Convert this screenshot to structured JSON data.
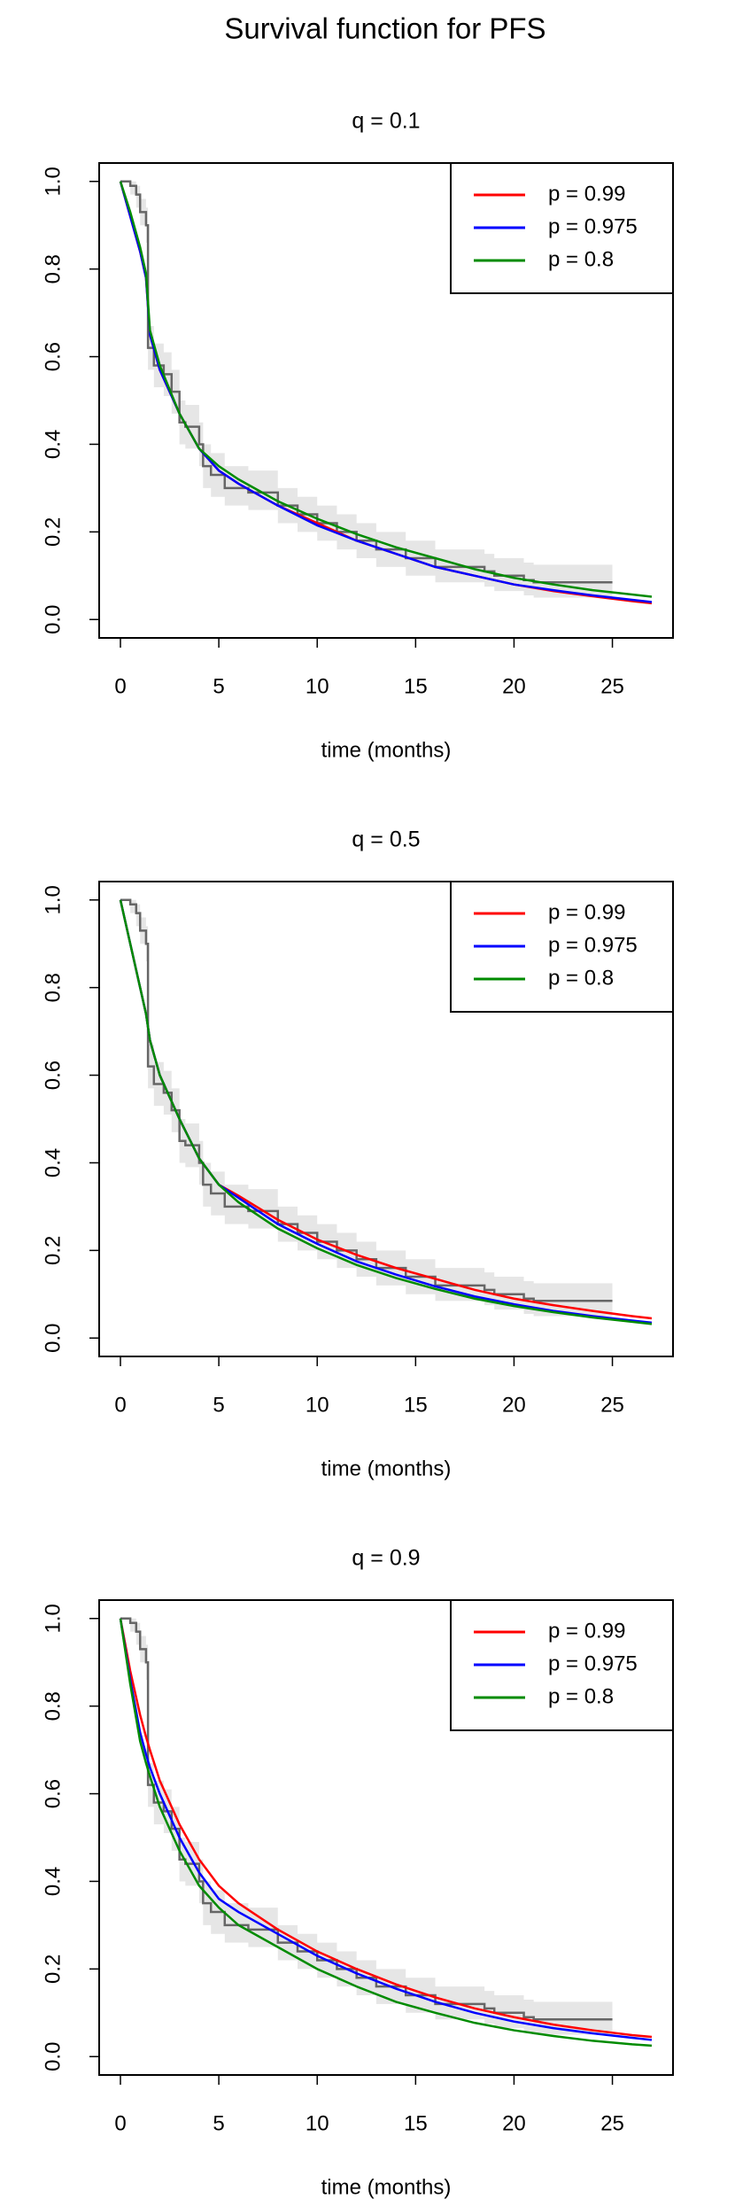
{
  "title": "Survival function for PFS",
  "chart_data": [
    {
      "type": "line",
      "title": "q = 0.1",
      "x_label": "time (months)",
      "xlim": [
        -1.08,
        28.08
      ],
      "ylim": [
        -0.042,
        1.042
      ],
      "xticks": [
        0,
        5,
        10,
        15,
        20,
        25
      ],
      "yticks": [
        {
          "value": 0,
          "label": "0.0"
        },
        0.2,
        0.4,
        0.6,
        0.8,
        {
          "value": 1,
          "label": "1.0"
        }
      ],
      "legend": "topright",
      "observed": {
        "color": "#666666",
        "band_color": "#e6e6e6",
        "x": [
          0,
          0.5,
          0.8,
          1,
          1.3,
          1.4,
          1.7,
          2.2,
          2.6,
          3,
          3.3,
          4,
          4.2,
          4.6,
          5.3,
          6.5,
          8,
          9,
          10,
          11,
          12,
          13,
          14.5,
          16,
          18.5,
          19,
          20.5,
          21,
          25
        ],
        "values": [
          1,
          0.99,
          0.97,
          0.93,
          0.9,
          0.62,
          0.58,
          0.56,
          0.52,
          0.45,
          0.44,
          0.4,
          0.35,
          0.33,
          0.3,
          0.29,
          0.26,
          0.24,
          0.22,
          0.2,
          0.18,
          0.16,
          0.14,
          0.12,
          0.11,
          0.1,
          0.09,
          0.085,
          0.085
        ],
        "lower": [
          1,
          0.97,
          0.94,
          0.9,
          0.86,
          0.57,
          0.53,
          0.51,
          0.47,
          0.4,
          0.39,
          0.35,
          0.3,
          0.28,
          0.26,
          0.25,
          0.22,
          0.2,
          0.18,
          0.16,
          0.14,
          0.12,
          0.1,
          0.085,
          0.075,
          0.065,
          0.055,
          0.05,
          0.05
        ],
        "upper": [
          1,
          1,
          0.99,
          0.96,
          0.94,
          0.67,
          0.63,
          0.61,
          0.57,
          0.5,
          0.49,
          0.45,
          0.4,
          0.38,
          0.35,
          0.34,
          0.3,
          0.28,
          0.26,
          0.24,
          0.22,
          0.2,
          0.18,
          0.16,
          0.15,
          0.14,
          0.13,
          0.125,
          0.125
        ]
      },
      "x": [
        0,
        0.5,
        1,
        1.3,
        1.5,
        2,
        3,
        4,
        5,
        6,
        8,
        10,
        12,
        14,
        16,
        18,
        20,
        22,
        24,
        26,
        27
      ],
      "series": [
        {
          "name": "p = 0.99",
          "color": "#ff0000",
          "values": [
            1,
            0.92,
            0.84,
            0.78,
            0.65,
            0.57,
            0.47,
            0.39,
            0.34,
            0.31,
            0.26,
            0.22,
            0.18,
            0.15,
            0.12,
            0.1,
            0.08,
            0.065,
            0.053,
            0.042,
            0.037
          ]
        },
        {
          "name": "p = 0.975",
          "color": "#0000ff",
          "values": [
            1,
            0.92,
            0.84,
            0.78,
            0.65,
            0.57,
            0.47,
            0.39,
            0.34,
            0.31,
            0.26,
            0.215,
            0.18,
            0.15,
            0.12,
            0.1,
            0.08,
            0.067,
            0.055,
            0.045,
            0.04
          ]
        },
        {
          "name": "p = 0.8",
          "color": "#008b00",
          "values": [
            1,
            0.93,
            0.85,
            0.79,
            0.66,
            0.58,
            0.47,
            0.39,
            0.35,
            0.32,
            0.27,
            0.23,
            0.195,
            0.165,
            0.14,
            0.115,
            0.095,
            0.08,
            0.067,
            0.057,
            0.052
          ]
        }
      ]
    },
    {
      "type": "line",
      "title": "q = 0.5",
      "x_label": "time (months)",
      "xlim": [
        -1.08,
        28.08
      ],
      "ylim": [
        -0.042,
        1.042
      ],
      "xticks": [
        0,
        5,
        10,
        15,
        20,
        25
      ],
      "yticks": [
        {
          "value": 0,
          "label": "0.0"
        },
        0.2,
        0.4,
        0.6,
        0.8,
        {
          "value": 1,
          "label": "1.0"
        }
      ],
      "legend": "topright",
      "observed": {
        "color": "#666666",
        "band_color": "#e6e6e6",
        "x": [
          0,
          0.5,
          0.8,
          1,
          1.3,
          1.4,
          1.7,
          2.2,
          2.6,
          3,
          3.3,
          4,
          4.2,
          4.6,
          5.3,
          6.5,
          8,
          9,
          10,
          11,
          12,
          13,
          14.5,
          16,
          18.5,
          19,
          20.5,
          21,
          25
        ],
        "values": [
          1,
          0.99,
          0.97,
          0.93,
          0.9,
          0.62,
          0.58,
          0.56,
          0.52,
          0.45,
          0.44,
          0.4,
          0.35,
          0.33,
          0.3,
          0.29,
          0.26,
          0.24,
          0.22,
          0.2,
          0.18,
          0.16,
          0.14,
          0.12,
          0.11,
          0.1,
          0.09,
          0.085,
          0.085
        ],
        "lower": [
          1,
          0.97,
          0.94,
          0.9,
          0.86,
          0.57,
          0.53,
          0.51,
          0.47,
          0.4,
          0.39,
          0.35,
          0.3,
          0.28,
          0.26,
          0.25,
          0.22,
          0.2,
          0.18,
          0.16,
          0.14,
          0.12,
          0.1,
          0.085,
          0.075,
          0.065,
          0.055,
          0.05,
          0.05
        ],
        "upper": [
          1,
          1,
          0.99,
          0.96,
          0.94,
          0.67,
          0.63,
          0.61,
          0.57,
          0.5,
          0.49,
          0.45,
          0.4,
          0.38,
          0.35,
          0.34,
          0.3,
          0.28,
          0.26,
          0.24,
          0.22,
          0.2,
          0.18,
          0.16,
          0.15,
          0.14,
          0.13,
          0.125,
          0.125
        ]
      },
      "x": [
        0,
        0.5,
        1,
        1.3,
        1.5,
        2,
        3,
        4,
        5,
        6,
        8,
        10,
        12,
        14,
        16,
        18,
        20,
        22,
        24,
        26,
        27
      ],
      "series": [
        {
          "name": "p = 0.99",
          "color": "#ff0000",
          "values": [
            1,
            0.9,
            0.8,
            0.74,
            0.68,
            0.6,
            0.5,
            0.41,
            0.35,
            0.325,
            0.27,
            0.225,
            0.19,
            0.16,
            0.135,
            0.11,
            0.09,
            0.075,
            0.062,
            0.05,
            0.045
          ]
        },
        {
          "name": "p = 0.975",
          "color": "#0000ff",
          "values": [
            1,
            0.9,
            0.8,
            0.74,
            0.68,
            0.6,
            0.5,
            0.41,
            0.35,
            0.32,
            0.26,
            0.215,
            0.175,
            0.145,
            0.118,
            0.095,
            0.077,
            0.062,
            0.05,
            0.04,
            0.035
          ]
        },
        {
          "name": "p = 0.8",
          "color": "#008b00",
          "values": [
            1,
            0.9,
            0.8,
            0.74,
            0.68,
            0.6,
            0.5,
            0.41,
            0.35,
            0.31,
            0.25,
            0.205,
            0.167,
            0.137,
            0.112,
            0.09,
            0.073,
            0.059,
            0.047,
            0.037,
            0.032
          ]
        }
      ]
    },
    {
      "type": "line",
      "title": "q = 0.9",
      "x_label": "time (months)",
      "xlim": [
        -1.08,
        28.08
      ],
      "ylim": [
        -0.042,
        1.042
      ],
      "xticks": [
        0,
        5,
        10,
        15,
        20,
        25
      ],
      "yticks": [
        {
          "value": 0,
          "label": "0.0"
        },
        0.2,
        0.4,
        0.6,
        0.8,
        {
          "value": 1,
          "label": "1.0"
        }
      ],
      "legend": "topright",
      "observed": {
        "color": "#666666",
        "band_color": "#e6e6e6",
        "x": [
          0,
          0.5,
          0.8,
          1,
          1.3,
          1.4,
          1.7,
          2.2,
          2.6,
          3,
          3.3,
          4,
          4.2,
          4.6,
          5.3,
          6.5,
          8,
          9,
          10,
          11,
          12,
          13,
          14.5,
          16,
          18.5,
          19,
          20.5,
          21,
          25
        ],
        "values": [
          1,
          0.99,
          0.97,
          0.93,
          0.9,
          0.62,
          0.58,
          0.56,
          0.52,
          0.45,
          0.44,
          0.4,
          0.35,
          0.33,
          0.3,
          0.29,
          0.26,
          0.24,
          0.22,
          0.2,
          0.18,
          0.16,
          0.14,
          0.12,
          0.11,
          0.1,
          0.09,
          0.085,
          0.085
        ],
        "lower": [
          1,
          0.97,
          0.94,
          0.9,
          0.86,
          0.57,
          0.53,
          0.51,
          0.47,
          0.4,
          0.39,
          0.35,
          0.3,
          0.28,
          0.26,
          0.25,
          0.22,
          0.2,
          0.18,
          0.16,
          0.14,
          0.12,
          0.1,
          0.085,
          0.075,
          0.065,
          0.055,
          0.05,
          0.05
        ],
        "upper": [
          1,
          1,
          0.99,
          0.96,
          0.94,
          0.67,
          0.63,
          0.61,
          0.57,
          0.5,
          0.49,
          0.45,
          0.4,
          0.38,
          0.35,
          0.34,
          0.3,
          0.28,
          0.26,
          0.24,
          0.22,
          0.2,
          0.18,
          0.16,
          0.15,
          0.14,
          0.13,
          0.125,
          0.125
        ]
      },
      "x": [
        0,
        0.5,
        1,
        1.3,
        1.5,
        2,
        3,
        4,
        5,
        6,
        8,
        10,
        12,
        14,
        16,
        18,
        20,
        22,
        24,
        26,
        27
      ],
      "series": [
        {
          "name": "p = 0.99",
          "color": "#ff0000",
          "values": [
            1,
            0.88,
            0.78,
            0.73,
            0.7,
            0.63,
            0.53,
            0.45,
            0.39,
            0.35,
            0.29,
            0.24,
            0.2,
            0.165,
            0.135,
            0.11,
            0.09,
            0.073,
            0.06,
            0.049,
            0.045
          ]
        },
        {
          "name": "p = 0.975",
          "color": "#0000ff",
          "values": [
            1,
            0.86,
            0.74,
            0.69,
            0.66,
            0.6,
            0.5,
            0.42,
            0.36,
            0.33,
            0.28,
            0.23,
            0.19,
            0.155,
            0.125,
            0.1,
            0.08,
            0.065,
            0.053,
            0.043,
            0.038
          ]
        },
        {
          "name": "p = 0.8",
          "color": "#008b00",
          "values": [
            1,
            0.85,
            0.72,
            0.67,
            0.64,
            0.57,
            0.47,
            0.39,
            0.34,
            0.3,
            0.25,
            0.2,
            0.16,
            0.125,
            0.1,
            0.077,
            0.06,
            0.047,
            0.036,
            0.028,
            0.025
          ]
        }
      ]
    }
  ]
}
